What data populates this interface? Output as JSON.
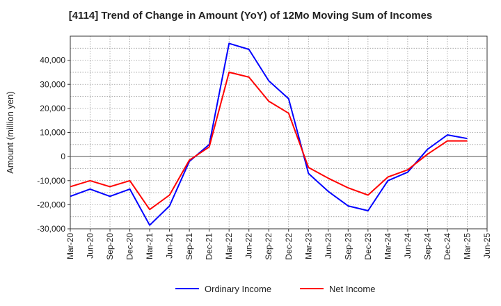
{
  "chart_data": {
    "type": "line",
    "title": "[4114]  Trend of Change in Amount (YoY) of 12Mo Moving Sum of Incomes",
    "ylabel": "Amount (million yen)",
    "xlabel": "",
    "ylim": [
      -30000,
      50000
    ],
    "yticks": [
      -30000,
      -20000,
      -10000,
      0,
      10000,
      20000,
      30000,
      40000
    ],
    "ytick_labels": [
      "-30,000",
      "-20,000",
      "-10,000",
      "0",
      "10,000",
      "20,000",
      "30,000",
      "40,000"
    ],
    "x_tick_labels": [
      "Mar-20",
      "Jun-20",
      "Sep-20",
      "Dec-20",
      "Mar-21",
      "Jun-21",
      "Sep-21",
      "Dec-21",
      "Mar-22",
      "Jun-22",
      "Sep-22",
      "Dec-22",
      "Mar-23",
      "Jun-23",
      "Sep-23",
      "Dec-23",
      "Mar-24",
      "Jun-24",
      "Sep-24",
      "Dec-24",
      "Mar-25",
      "Jun-25"
    ],
    "categories": [
      "Mar-20",
      "Jun-20",
      "Sep-20",
      "Dec-20",
      "Mar-21",
      "Jun-21",
      "Sep-21",
      "Dec-21",
      "Mar-22",
      "Jun-22",
      "Sep-22",
      "Dec-22",
      "Mar-23",
      "Jun-23",
      "Sep-23",
      "Dec-23",
      "Mar-24",
      "Jun-24",
      "Sep-24",
      "Dec-24",
      "Mar-25"
    ],
    "grid": true,
    "legend_position": "bottom-center",
    "series": [
      {
        "name": "Ordinary Income",
        "color": "#0000ff",
        "values": [
          -16500,
          -13500,
          -16500,
          -13500,
          -28500,
          -20500,
          -2000,
          5000,
          47000,
          44500,
          31500,
          24000,
          -7000,
          -14500,
          -20500,
          -22500,
          -10000,
          -6500,
          3000,
          9000,
          7500
        ]
      },
      {
        "name": "Net Income",
        "color": "#ff0000",
        "values": [
          -12500,
          -10000,
          -12500,
          -10000,
          -22000,
          -16000,
          -1500,
          4000,
          35000,
          33000,
          23000,
          18000,
          -4500,
          -9000,
          -13000,
          -16000,
          -8500,
          -5500,
          1000,
          6500,
          6500
        ]
      }
    ]
  }
}
